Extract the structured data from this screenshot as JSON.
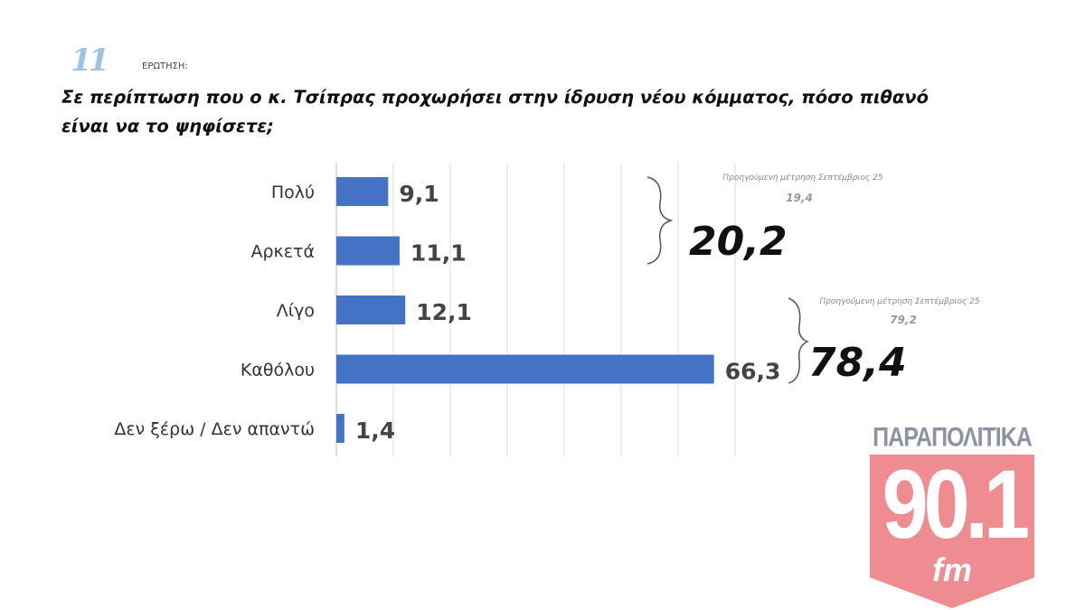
{
  "header": {
    "question_number": "11",
    "question_label": "ΕΡΩΤΗΣΗ:"
  },
  "chart_data": {
    "type": "bar",
    "orientation": "horizontal",
    "title": "Σε περίπτωση που ο κ. Τσίπρας προχωρήσει στην ίδρυση νέου κόμματος, πόσο πιθανό είναι να το ψηφίσετε;",
    "categories": [
      "Πολύ",
      "Αρκετά",
      "Λίγο",
      "Καθόλου",
      "Δεν ξέρω / Δεν απαντώ"
    ],
    "values": [
      9.1,
      11.1,
      12.1,
      66.3,
      1.4
    ],
    "value_labels": [
      "9,1",
      "11,1",
      "12,1",
      "66,3",
      "1,4"
    ],
    "xlim": [
      0,
      70
    ],
    "grid": true,
    "bar_color": "#4472c4",
    "annotations": [
      {
        "group": [
          "Πολύ",
          "Αρκετά"
        ],
        "total": "20,2",
        "previous_label": "Προηγούμενη μέτρηση Σεπτέμβριος 25",
        "previous_value": "19,4"
      },
      {
        "group": [
          "Λίγο",
          "Καθόλου"
        ],
        "total": "78,4",
        "previous_label": "Προηγούμενη μέτρηση Σεπτέμβριος 25",
        "previous_value": "79,2"
      }
    ]
  },
  "logo": {
    "brand": "ΠΑΡΑΠΟΛΙΤΙΚΑ",
    "frequency": "90.1",
    "band": "fm"
  }
}
